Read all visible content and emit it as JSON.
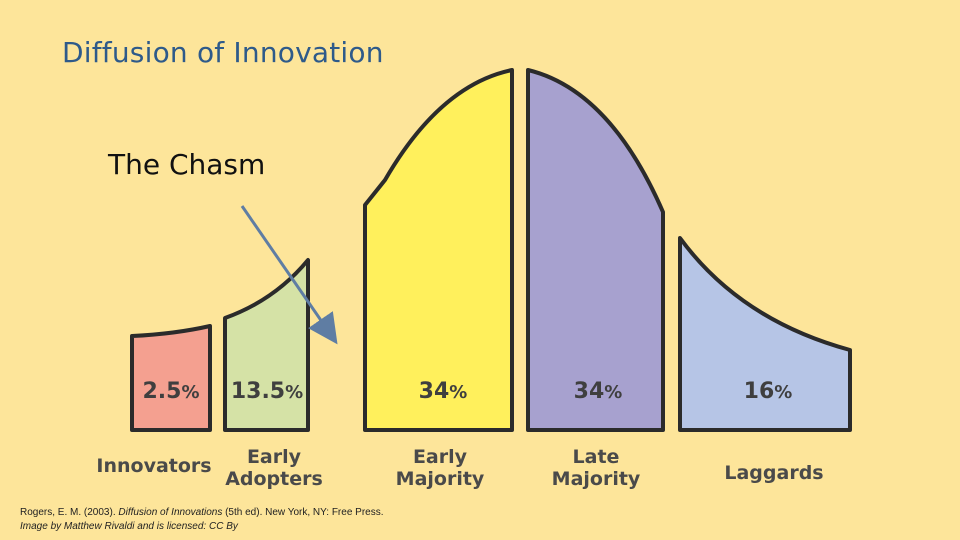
{
  "title": "Diffusion of Innovation",
  "annotation": "The Chasm",
  "segments": [
    {
      "label_line1": "Innovators",
      "label_line2": "",
      "percent": "2.5",
      "color": "#f4a090"
    },
    {
      "label_line1": "Early",
      "label_line2": "Adopters",
      "percent": "13.5",
      "color": "#d5e2a6"
    },
    {
      "label_line1": "Early",
      "label_line2": "Majority",
      "percent": "34",
      "color": "#fff05c"
    },
    {
      "label_line1": "Late",
      "label_line2": "Majority",
      "percent": "34",
      "color": "#a7a1cf"
    },
    {
      "label_line1": "Laggards",
      "label_line2": "",
      "percent": "16",
      "color": "#b6c5e6"
    }
  ],
  "percent_sign": "%",
  "citation": {
    "line1_prefix": "Rogers, E. M. (2003). ",
    "line1_title": "Diffusion of Innovations",
    "line1_suffix": " (5th ed). New York, NY: Free Press.",
    "line2": "Image by Matthew Rivaldi and is licensed:  CC By"
  },
  "colors": {
    "background": "#fde59a",
    "title": "#2e5a8a",
    "outline": "#2b2b2b",
    "arrow": "#5f7da3"
  }
}
